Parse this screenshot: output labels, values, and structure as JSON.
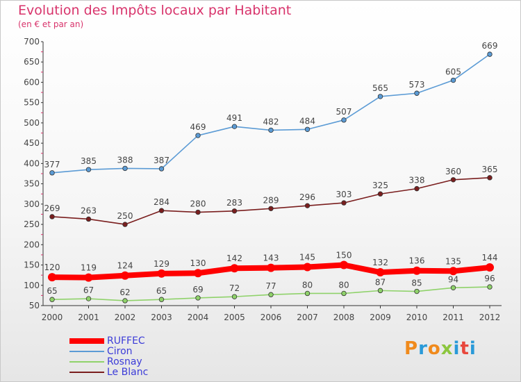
{
  "header": {
    "title": "Evolution des Impôts locaux par Habitant",
    "subtitle": "(en € et par an)"
  },
  "logo": {
    "text": "Proxiti",
    "colors": [
      "#f08a1c",
      "#2a9ad8",
      "#f08a1c",
      "#8cc63e",
      "#2a9ad8",
      "#e8473c",
      "#2a9ad8"
    ]
  },
  "chart_data": {
    "type": "line",
    "x": [
      "2000",
      "2001",
      "2002",
      "2003",
      "2004",
      "2005",
      "2006",
      "2007",
      "2008",
      "2009",
      "2010",
      "2011",
      "2012"
    ],
    "ylim": [
      50,
      700
    ],
    "yticks": [
      50,
      100,
      150,
      200,
      250,
      300,
      350,
      400,
      450,
      500,
      550,
      600,
      650,
      700
    ],
    "legend_position": "bottom-left",
    "grid": false,
    "series": [
      {
        "name": "Ciron",
        "color": "#5b9bd5",
        "values": [
          377,
          385,
          388,
          387,
          469,
          491,
          482,
          484,
          507,
          565,
          573,
          605,
          669
        ]
      },
      {
        "name": "Le Blanc",
        "color": "#7a1e1e",
        "values": [
          269,
          263,
          250,
          284,
          280,
          283,
          289,
          296,
          303,
          325,
          338,
          360,
          365
        ]
      },
      {
        "name": "Rosnay",
        "color": "#8fd26a",
        "values": [
          65,
          67,
          62,
          65,
          69,
          72,
          77,
          80,
          80,
          87,
          85,
          94,
          96
        ]
      },
      {
        "name": "RUFFEC",
        "color": "#ff0000",
        "values": [
          120,
          119,
          124,
          129,
          130,
          142,
          143,
          145,
          150,
          132,
          136,
          135,
          144
        ]
      }
    ],
    "legend": [
      {
        "name": "RUFFEC",
        "color": "#ff0000",
        "thick": true
      },
      {
        "name": "Ciron",
        "color": "#5b9bd5",
        "thick": false
      },
      {
        "name": "Rosnay",
        "color": "#8fd26a",
        "thick": false
      },
      {
        "name": "Le Blanc",
        "color": "#7a1e1e",
        "thick": false
      }
    ]
  }
}
